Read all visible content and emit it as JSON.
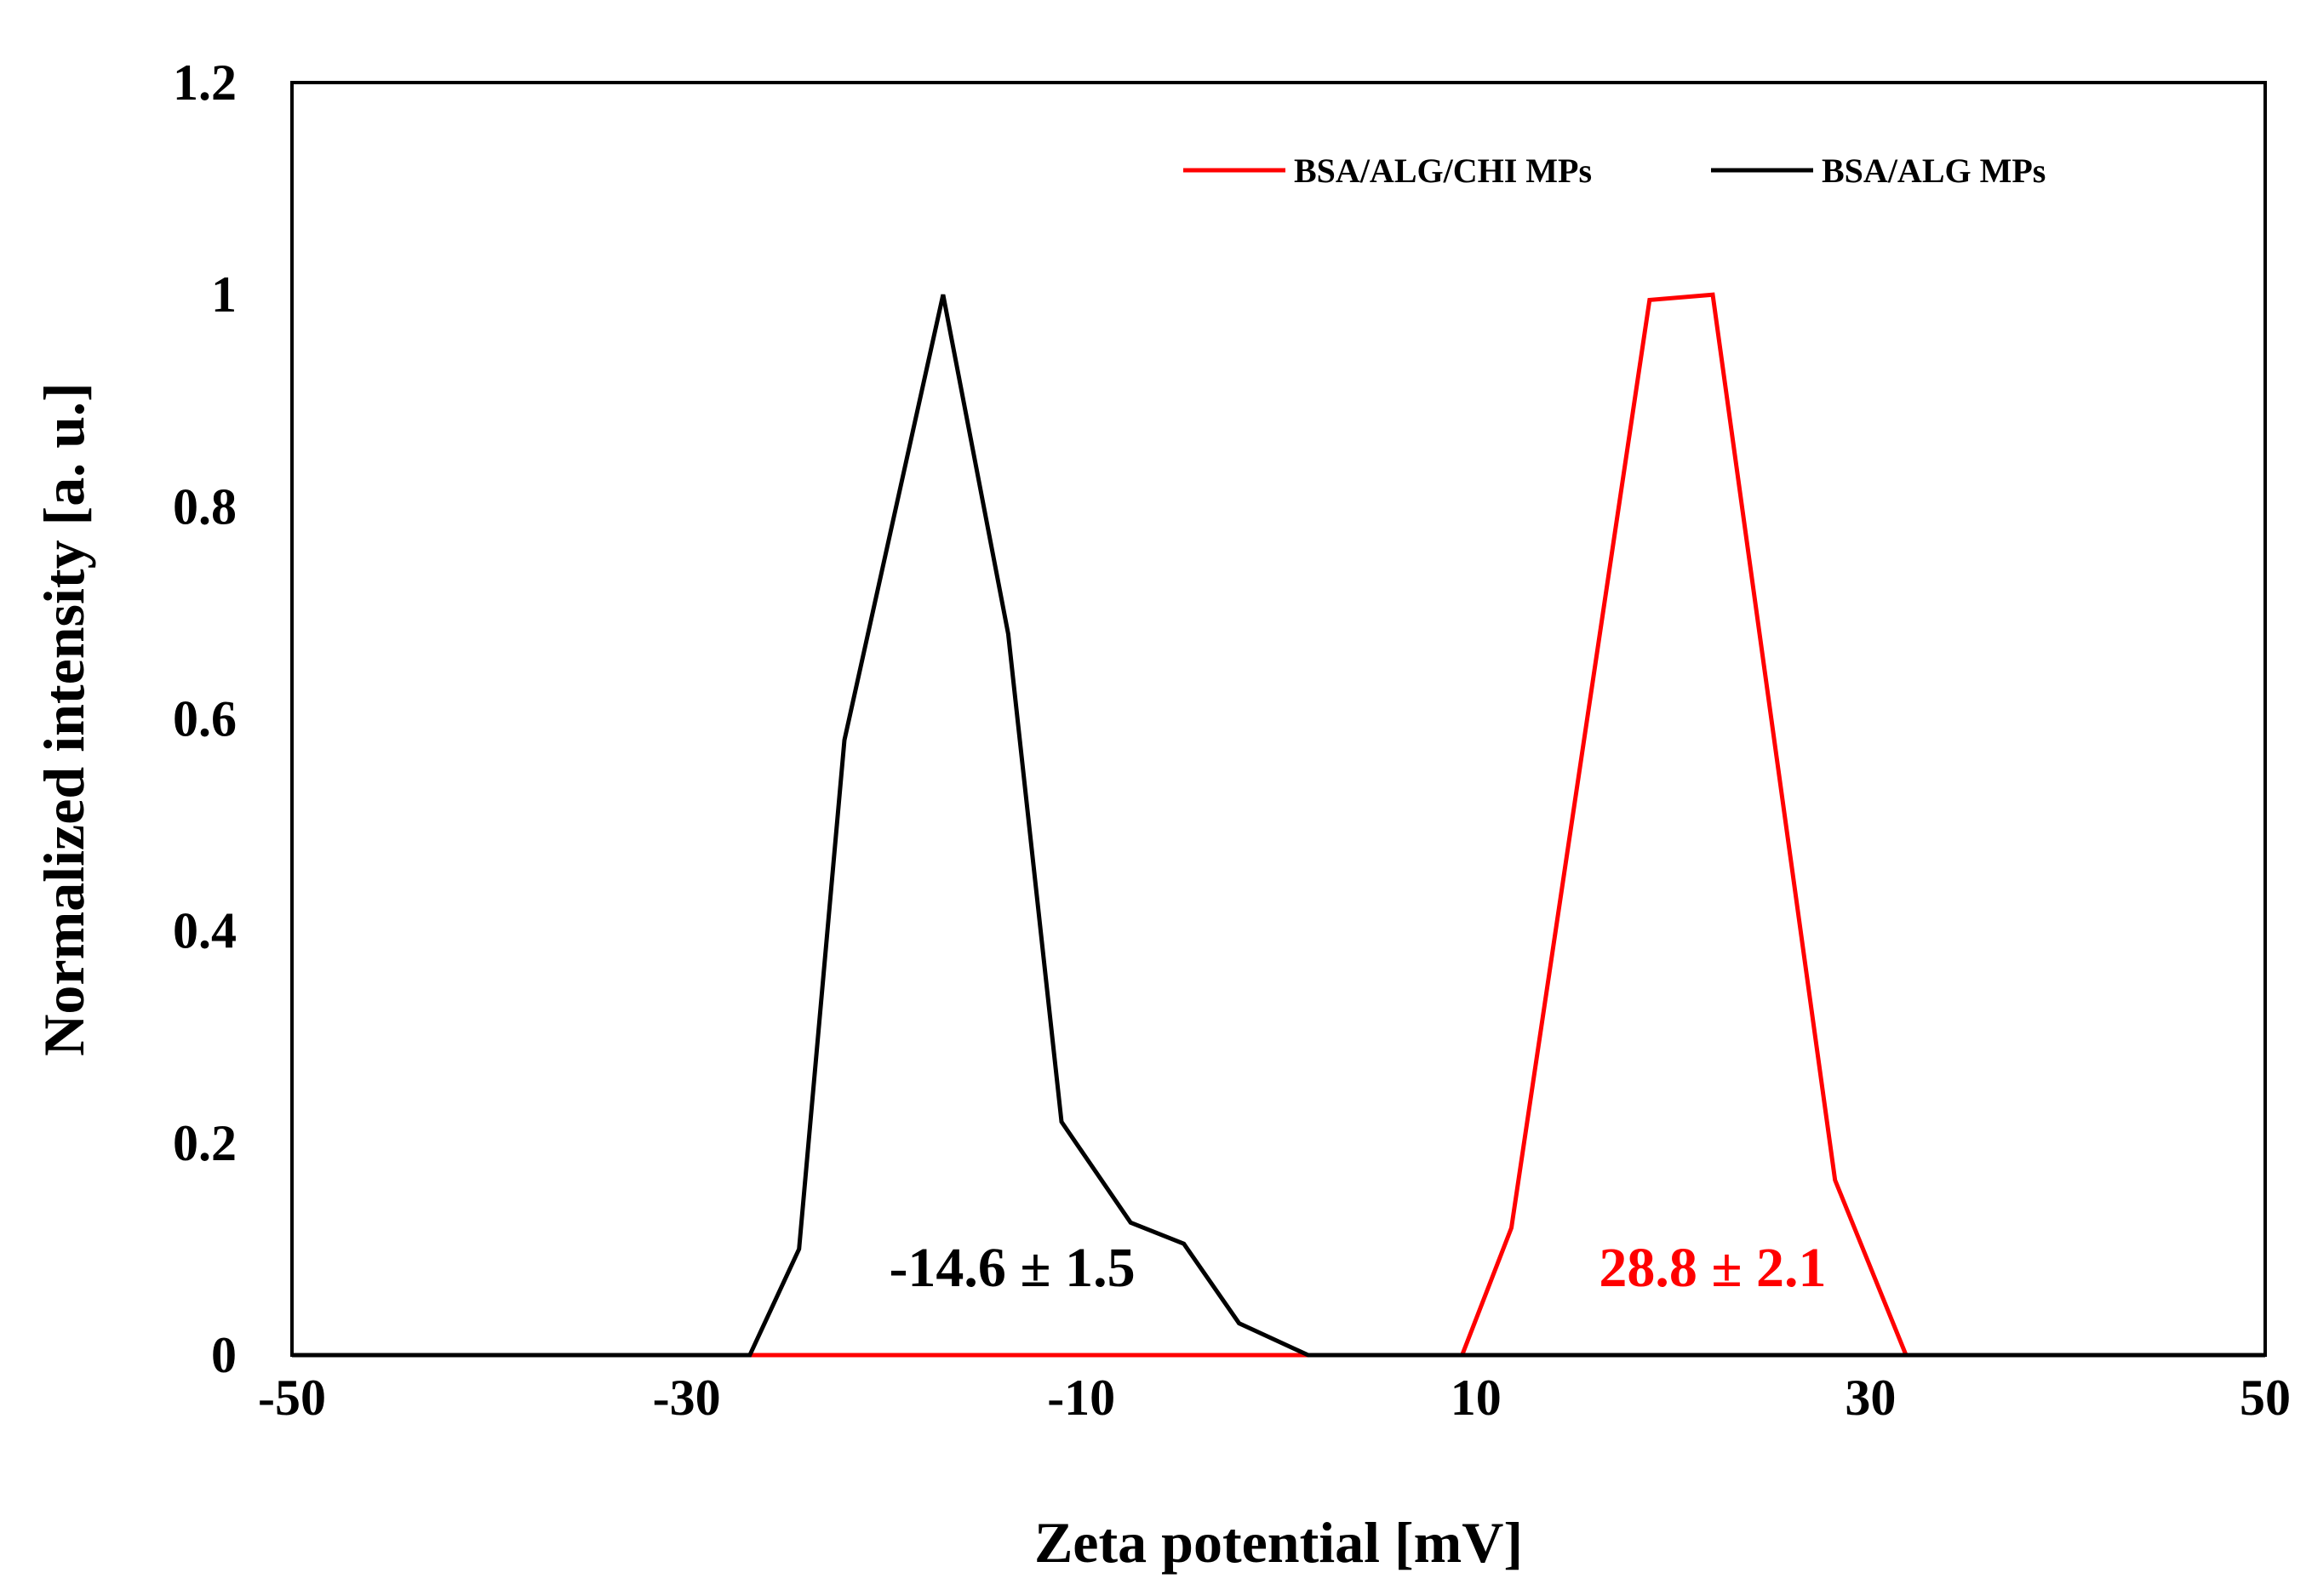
{
  "chart_data": {
    "type": "line",
    "title": "",
    "xlabel": "Zeta potential [mV]",
    "ylabel": "Normalized intensity  [a. u.]",
    "xlim": [
      -50,
      50
    ],
    "ylim": [
      0,
      1.2
    ],
    "x_ticks": [
      "-50",
      "-30",
      "-10",
      "10",
      "30",
      "50"
    ],
    "y_ticks": [
      "0",
      "0.2",
      "0.4",
      "0.6",
      "0.8",
      "1",
      "1.2"
    ],
    "grid": false,
    "legend_position": "top-right",
    "series": [
      {
        "name": "BSA/ALG/CHI MPs",
        "color": "#ff0000",
        "x": [
          -50,
          9.3,
          11.8,
          18.8,
          22.0,
          28.2,
          31.8,
          50
        ],
        "y": [
          0,
          0,
          0.12,
          0.995,
          1.0,
          0.165,
          0,
          0
        ]
      },
      {
        "name": "BSA/ALG MPs",
        "color": "#000000",
        "x": [
          -50,
          -26.8,
          -24.3,
          -22.0,
          -17.0,
          -13.7,
          -11.0,
          -7.5,
          -4.8,
          -2.0,
          1.5,
          50
        ],
        "y": [
          0,
          0,
          0.1,
          0.58,
          1.0,
          0.68,
          0.22,
          0.125,
          0.105,
          0.03,
          0,
          0
        ]
      }
    ],
    "annotations": [
      {
        "text": "-14.6 ± 1.5",
        "x": -13.5,
        "y": 0.065,
        "color": "#000000"
      },
      {
        "text": "28.8 ± 2.1",
        "x": 22.0,
        "y": 0.065,
        "color": "#ff0000"
      }
    ]
  }
}
